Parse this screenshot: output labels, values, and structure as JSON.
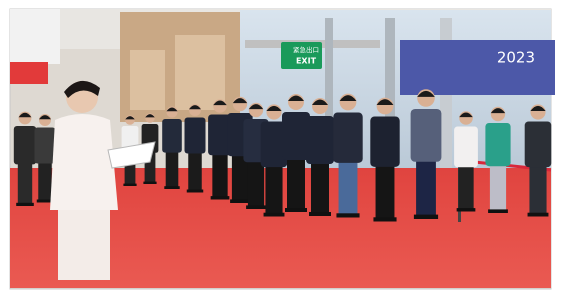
{
  "scene": {
    "signs": {
      "exit_cn": "紧急出口",
      "exit_en": "EXIT",
      "banner_year": "2023"
    }
  }
}
